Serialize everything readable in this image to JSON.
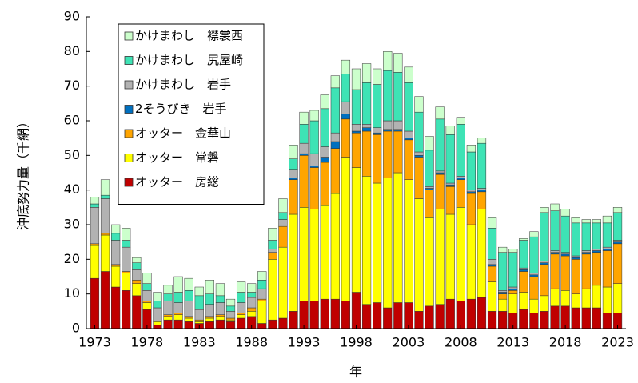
{
  "chart_data": {
    "type": "stacked-bar",
    "y_label": "沖底努力量（千網）",
    "x_label": "年",
    "x": [
      1973,
      1974,
      1975,
      1976,
      1977,
      1978,
      1979,
      1980,
      1981,
      1982,
      1983,
      1984,
      1985,
      1986,
      1987,
      1988,
      1989,
      1990,
      1991,
      1992,
      1993,
      1994,
      1995,
      1996,
      1997,
      1998,
      1999,
      2000,
      2001,
      2002,
      2003,
      2004,
      2005,
      2006,
      2007,
      2008,
      2009,
      2010,
      2011,
      2012,
      2013,
      2014,
      2015,
      2016,
      2017,
      2018,
      2019,
      2020,
      2021,
      2022,
      2023
    ],
    "xlim": [
      1972.2,
      2023.8
    ],
    "xticks": [
      1973,
      1978,
      1983,
      1988,
      1993,
      1998,
      2003,
      2008,
      2013,
      2018,
      2023
    ],
    "ylim": [
      0,
      90
    ],
    "yticks": [
      0,
      10,
      20,
      30,
      40,
      50,
      60,
      70,
      80,
      90
    ],
    "legend": "upper left",
    "series": [
      {
        "name": "オッター　房総",
        "color": "#c00000",
        "values": [
          14.5,
          16.5,
          12,
          11,
          9.5,
          5.5,
          1,
          2.5,
          2.5,
          2,
          1.5,
          2,
          2.5,
          2,
          3,
          3.5,
          1.5,
          2.5,
          3,
          5,
          8,
          8,
          8.5,
          8.5,
          8,
          10.5,
          7,
          7.5,
          6,
          7.5,
          7.5,
          5,
          6.5,
          7,
          8.5,
          8,
          8.5,
          9,
          5,
          5,
          4.5,
          5.5,
          4.5,
          5,
          6.5,
          6.5,
          6,
          6,
          6,
          4.5,
          4.5
        ]
      },
      {
        "name": "オッター　常磐",
        "color": "#ffff00",
        "values": [
          9.5,
          10.5,
          6,
          5,
          3.5,
          2,
          1,
          1,
          1.5,
          1,
          0.5,
          1,
          1,
          0.5,
          1,
          1.5,
          6.5,
          17.5,
          20.5,
          28,
          27,
          26.5,
          27,
          30.5,
          41.5,
          36,
          37,
          34.5,
          37.5,
          37.5,
          35.5,
          32.5,
          25.5,
          27.5,
          24.5,
          27,
          21.5,
          25.5,
          8.5,
          3.5,
          5.5,
          5,
          4,
          4.5,
          5,
          4.5,
          4,
          5.5,
          6.5,
          7.5,
          8.5
        ]
      },
      {
        "name": "オッター　金華山",
        "color": "#ffa500",
        "values": [
          0.5,
          0.5,
          0.5,
          0.5,
          1,
          0.5,
          0,
          0.5,
          0.5,
          0.5,
          0.5,
          0.5,
          0.5,
          0.5,
          0.5,
          1,
          0.5,
          2,
          6,
          10,
          15,
          12,
          12.5,
          13,
          11,
          10,
          13,
          14,
          13.5,
          12,
          11.5,
          12,
          8,
          10,
          8,
          8,
          9,
          5,
          4.5,
          1.5,
          1,
          6,
          6.5,
          9,
          10,
          10,
          10,
          10,
          9.5,
          10.5,
          11.5
        ]
      },
      {
        "name": "2そうびき　岩手",
        "color": "#0070c0",
        "values": [
          0,
          0,
          0,
          0,
          0,
          0,
          0,
          0,
          0,
          0,
          0,
          0,
          0,
          0,
          0,
          0,
          0,
          0,
          0,
          0.5,
          0.5,
          0.5,
          1.5,
          2,
          1.5,
          0.5,
          1,
          0.5,
          0.5,
          0.5,
          0.5,
          0.5,
          0.5,
          0.5,
          0.5,
          0.5,
          0.5,
          0.5,
          0.5,
          0.5,
          0.5,
          0.5,
          0.5,
          0.5,
          0.5,
          0.5,
          0.5,
          0.5,
          0.5,
          0.5,
          0.5
        ]
      },
      {
        "name": "かけまわし　岩手",
        "color": "#b2b2b2",
        "values": [
          10.5,
          10,
          7,
          7,
          3,
          3,
          4,
          4,
          3,
          4.5,
          3,
          3.5,
          3.5,
          2,
          3,
          3,
          3,
          1,
          2,
          2.5,
          3,
          3.5,
          3,
          2.5,
          3.5,
          2,
          1,
          1.5,
          2.5,
          2.5,
          2,
          1,
          0.5,
          0.5,
          0.5,
          0.5,
          0.5,
          0.5,
          1.5,
          0.5,
          0.5,
          0.5,
          0.5,
          0.5,
          0.5,
          0.5,
          0.5,
          0.5,
          0.5,
          0.5,
          0.5
        ]
      },
      {
        "name": "かけまわし　尻屋崎",
        "color": "#3ee3b5",
        "values": [
          1,
          1,
          2,
          2,
          2,
          2,
          2,
          2,
          3,
          3,
          4,
          3,
          2,
          1.5,
          3,
          1.5,
          2.5,
          2.5,
          2,
          3,
          5.5,
          9.5,
          11,
          13,
          8,
          10,
          12,
          12.5,
          14.5,
          14,
          14,
          11.5,
          10.5,
          15,
          14,
          15,
          11,
          13,
          9,
          11,
          10,
          8,
          10.5,
          14,
          11.5,
          10.5,
          9.5,
          8,
          7.5,
          7,
          8
        ]
      },
      {
        "name": "かけまわし　襟裳西",
        "color": "#ccffcc",
        "values": [
          2,
          4.5,
          2.5,
          3.5,
          1.5,
          3,
          2.5,
          2.5,
          4.5,
          3.5,
          2.5,
          4,
          3.5,
          2,
          3,
          2.5,
          2.5,
          3.5,
          4,
          4,
          3.5,
          3,
          4,
          3.5,
          4,
          6,
          5.5,
          4.5,
          5.5,
          5.5,
          4.5,
          4.5,
          4,
          3.5,
          2.5,
          2,
          2,
          1.5,
          3,
          1.5,
          1,
          0.5,
          1.5,
          1.5,
          2,
          2,
          1.5,
          1,
          1,
          2,
          1.5
        ]
      }
    ]
  }
}
